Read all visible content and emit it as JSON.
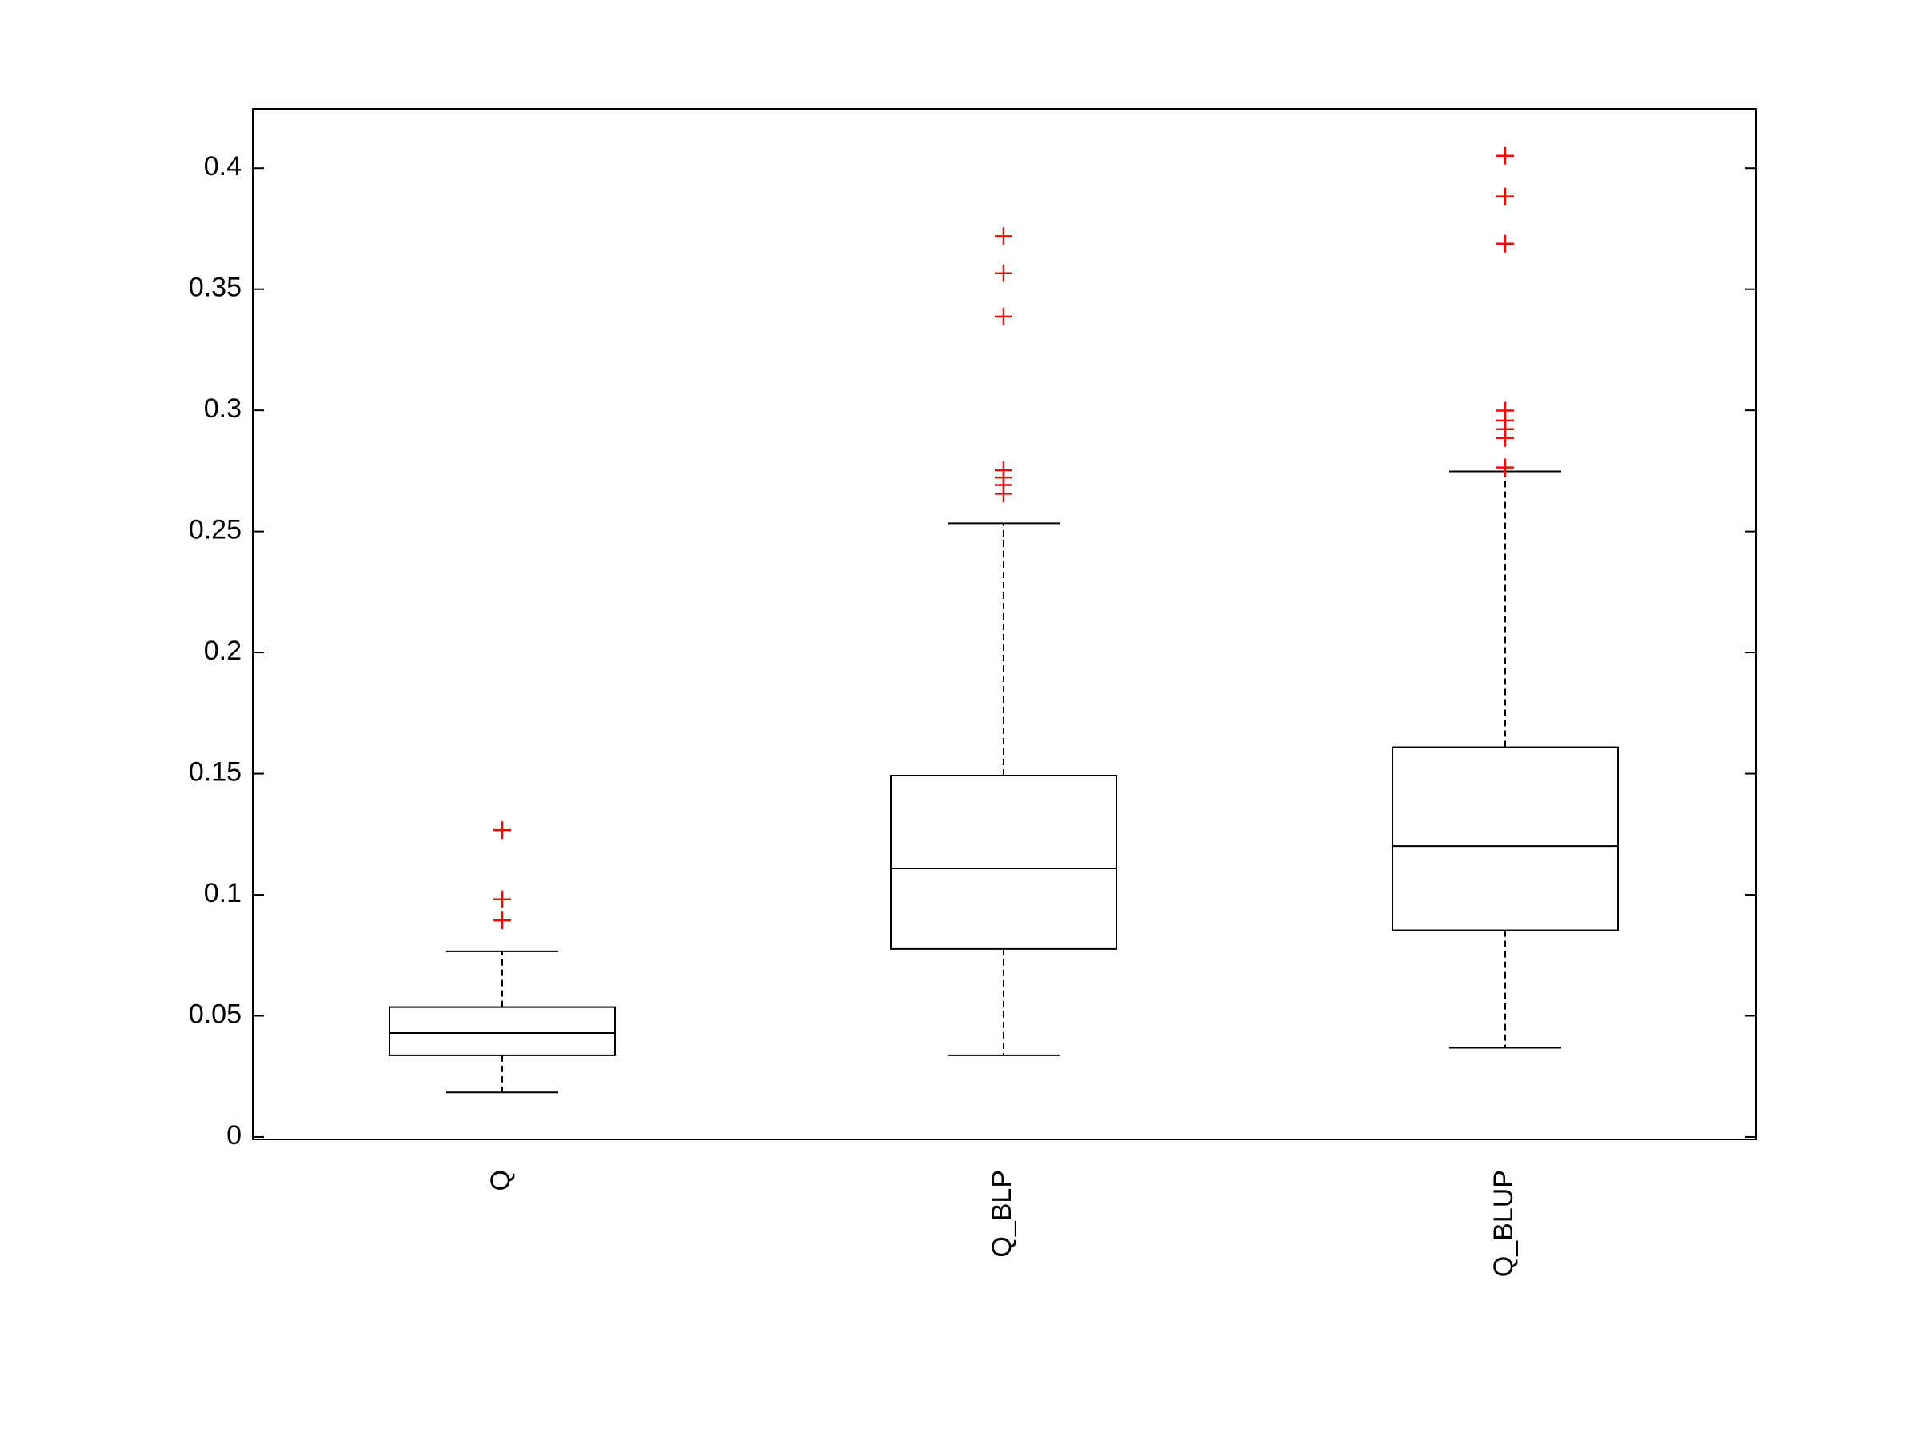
{
  "chart_data": {
    "type": "box",
    "categories": [
      "Q",
      "Q_BLP",
      "Q_BLUP"
    ],
    "boxes": [
      {
        "min": 0.0184,
        "q1": 0.0337,
        "median": 0.0429,
        "q3": 0.0536,
        "max": 0.0766,
        "outliers": [
          0.1267,
          0.0981,
          0.0894
        ]
      },
      {
        "min": 0.0337,
        "q1": 0.0776,
        "median": 0.1109,
        "q3": 0.1492,
        "max": 0.2534,
        "outliers": [
          0.3719,
          0.3566,
          0.3387,
          0.2753,
          0.2723,
          0.2692,
          0.2656
        ]
      },
      {
        "min": 0.0368,
        "q1": 0.0853,
        "median": 0.1201,
        "q3": 0.1609,
        "max": 0.2748,
        "outliers": [
          0.4051,
          0.3883,
          0.3688,
          0.2999,
          0.2958,
          0.2922,
          0.2886,
          0.2764
        ]
      }
    ],
    "box_color": "#000000",
    "outlier_color": "#ff0000",
    "ylim": [
      -0.001,
      0.4245
    ],
    "yticks": [
      0,
      0.05,
      0.1,
      0.15,
      0.2,
      0.25,
      0.3,
      0.35,
      0.4
    ]
  }
}
